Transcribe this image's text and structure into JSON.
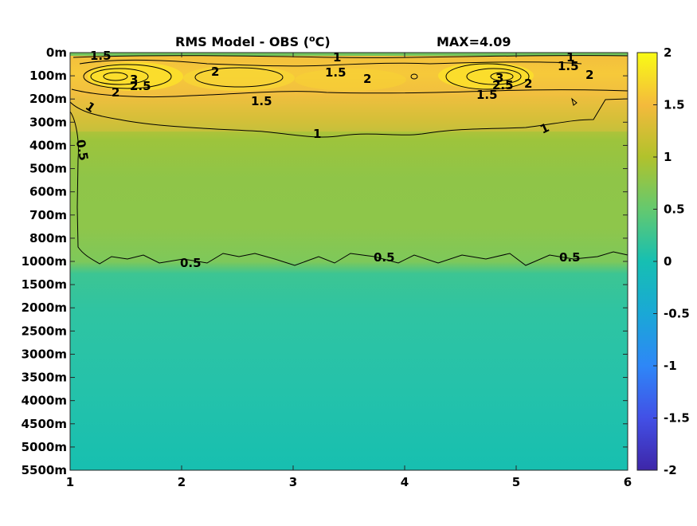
{
  "chart_data": {
    "type": "heatmap",
    "title": "RMS Model - OBS (",
    "title_superscript": "o",
    "title_suffix": "C)",
    "max_text": "MAX=4.09",
    "x_ticks": [
      "1",
      "2",
      "3",
      "4",
      "5",
      "6"
    ],
    "xlim": [
      1,
      6
    ],
    "y_ticks": [
      "0m",
      "100m",
      "200m",
      "300m",
      "400m",
      "500m",
      "600m",
      "700m",
      "800m",
      "1000m",
      "1500m",
      "2000m",
      "2500m",
      "3000m",
      "3500m",
      "4000m",
      "4500m",
      "5000m",
      "5500m"
    ],
    "colorbar": {
      "ticks": [
        "2",
        "1.5",
        "1",
        "0.5",
        "0",
        "-0.5",
        "-1",
        "-1.5",
        "-2"
      ],
      "range": [
        -2,
        2
      ],
      "colormap": "parula",
      "colors": [
        "#3e26a8",
        "#4250e6",
        "#2e87f7",
        "#1aa8d6",
        "#16bfb2",
        "#64c96f",
        "#b1c22c",
        "#f4ba3c",
        "#f9fb15"
      ]
    },
    "contour_levels": [
      0.5,
      1,
      1.5,
      2,
      2.5,
      3
    ],
    "contour_labels": [
      "1.5",
      "1",
      "1.5",
      "1",
      "1.5",
      "2",
      "2",
      "2",
      "2.5",
      "3",
      "2.5",
      "3",
      "2",
      "2",
      "1.5",
      "1.5",
      "1",
      "1",
      "0.5",
      "0.5",
      "0.5",
      "0.5"
    ],
    "depth_profile_rms": [
      {
        "depth": "0m",
        "value": 1.7
      },
      {
        "depth": "100m",
        "value": 2.2
      },
      {
        "depth": "200m",
        "value": 1.6
      },
      {
        "depth": "300m",
        "value": 1.2
      },
      {
        "depth": "400m",
        "value": 0.9
      },
      {
        "depth": "500m",
        "value": 0.85
      },
      {
        "depth": "600m",
        "value": 0.8
      },
      {
        "depth": "700m",
        "value": 0.8
      },
      {
        "depth": "800m",
        "value": 0.75
      },
      {
        "depth": "1000m",
        "value": 0.45
      },
      {
        "depth": "1500m",
        "value": 0.3
      },
      {
        "depth": "2000m",
        "value": 0.25
      },
      {
        "depth": "2500m",
        "value": 0.2
      },
      {
        "depth": "3000m",
        "value": 0.18
      },
      {
        "depth": "3500m",
        "value": 0.15
      },
      {
        "depth": "4000m",
        "value": 0.12
      },
      {
        "depth": "4500m",
        "value": 0.1
      },
      {
        "depth": "5000m",
        "value": 0.08
      },
      {
        "depth": "5500m",
        "value": 0.05
      }
    ]
  }
}
